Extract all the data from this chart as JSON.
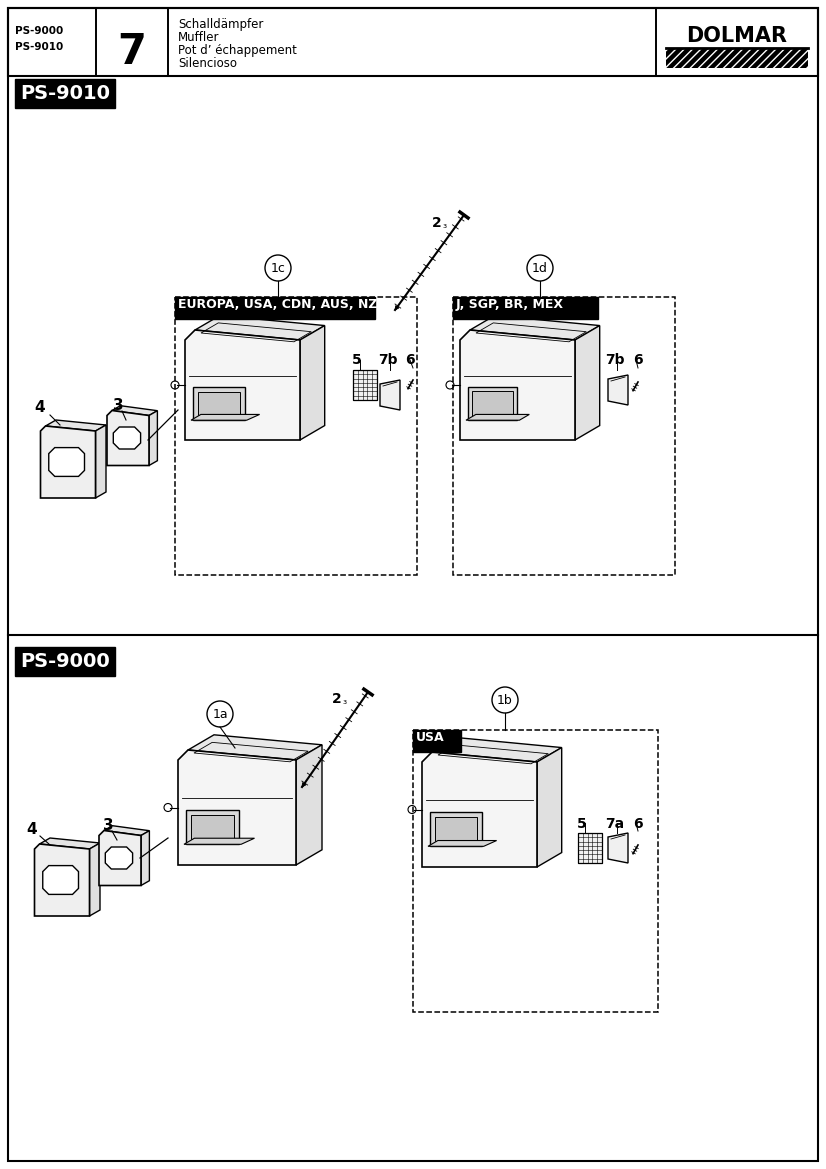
{
  "page_title_left_1": "PS-9000",
  "page_title_left_2": "PS-9010",
  "page_number": "7",
  "page_desc_lines": [
    "Schalldämpfer",
    "Muffler",
    "Pot d’ échappement",
    "Silencioso"
  ],
  "brand": "DOLMAR",
  "section1_label": "PS-9010",
  "section2_label": "PS-9000",
  "box1_label": "EUROPA, USA, CDN, AUS, NZ",
  "box2_label": "J, SGP, BR, MEX",
  "box3_label": "USA",
  "callout_1c": "1c",
  "callout_1d": "1d",
  "callout_1a": "1a",
  "callout_1b": "1b",
  "callout_2": "2",
  "sub3": "₃",
  "label_4": "4",
  "label_3": "3",
  "label_5": "5",
  "label_7b": "7b",
  "label_7a": "7a",
  "label_6": "6",
  "background_color": "#ffffff"
}
